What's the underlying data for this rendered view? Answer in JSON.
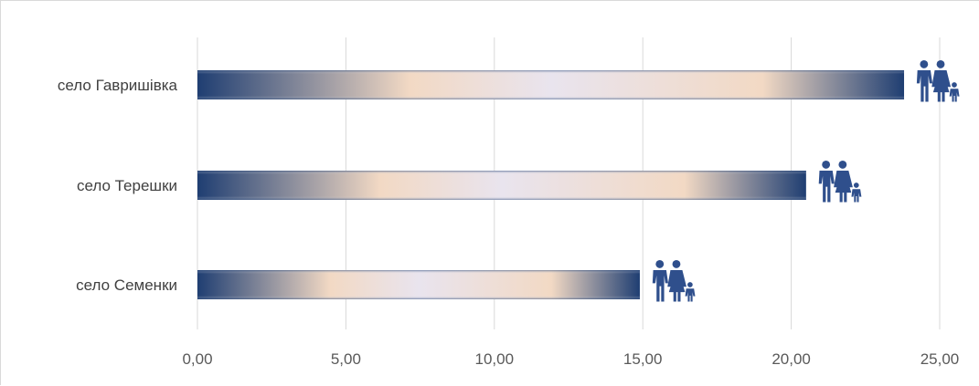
{
  "chart_data": {
    "type": "bar",
    "orientation": "horizontal",
    "categories": [
      "село Гавришівка",
      "село Терешки",
      "село Семенки"
    ],
    "values": [
      23.8,
      20.5,
      14.9
    ],
    "xlim": [
      0,
      25
    ],
    "xticks": [
      "0,00",
      "5,00",
      "10,00",
      "15,00",
      "20,00",
      "25,00"
    ],
    "grid": true,
    "legend": "none",
    "bar_gradient": [
      "#1f3e72",
      "#f2d9c4",
      "#e9e4ee",
      "#f2d9c4",
      "#1f3e72"
    ],
    "icon_color": "#2f4f8c",
    "icon": "family-icon"
  }
}
